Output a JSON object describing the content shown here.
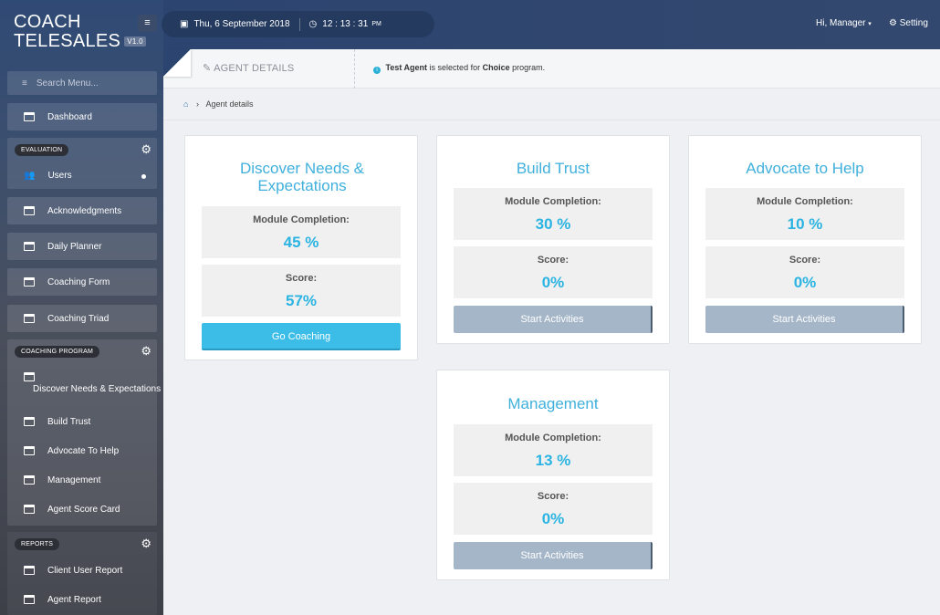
{
  "brand": {
    "line1": "COACH",
    "line2": "TELESALES",
    "version": "V1.0"
  },
  "topbar": {
    "date": "Thu, 6 September 2018",
    "time": "12 : 13 : 31",
    "ampm": "PM",
    "greeting": "Hi, Manager",
    "setting": "Setting"
  },
  "sidebar": {
    "search_placeholder": "Search Menu...",
    "dashboard": "Dashboard",
    "evaluation": {
      "heading": "EVALUATION",
      "users": "Users"
    },
    "acknowledgments": "Acknowledgments",
    "daily_planner": "Daily Planner",
    "coaching_form": "Coaching Form",
    "coaching_triad": "Coaching Triad",
    "coaching_program": {
      "heading": "COACHING PROGRAM",
      "items": [
        "Discover Needs & Expectations",
        "Build Trust",
        "Advocate To Help",
        "Management",
        "Agent Score Card"
      ]
    },
    "reports": {
      "heading": "REPORTS",
      "items": [
        "Client User Report",
        "Agent Report"
      ]
    }
  },
  "detailbar": {
    "title": "AGENT DETAILS",
    "agent": "Test Agent",
    "msg_mid": "is selected for",
    "program": "Choice",
    "msg_end": "program."
  },
  "breadcrumb": {
    "current": "Agent details"
  },
  "cards": [
    {
      "title": "Discover Needs & Expectations",
      "completion_label": "Module Completion:",
      "completion": "45 %",
      "score_label": "Score:",
      "score": "57%",
      "button": "Go Coaching"
    },
    {
      "title": "Build Trust",
      "completion_label": "Module Completion:",
      "completion": "30 %",
      "score_label": "Score:",
      "score": "0%",
      "button": "Start Activities"
    },
    {
      "title": "Advocate to Help",
      "completion_label": "Module Completion:",
      "completion": "10 %",
      "score_label": "Score:",
      "score": "0%",
      "button": "Start Activities"
    },
    {
      "title": "Management",
      "completion_label": "Module Completion:",
      "completion": "13 %",
      "score_label": "Score:",
      "score": "0%",
      "button": "Start Activities"
    }
  ],
  "colors": {
    "accent": "#3bbde8",
    "title": "#3fb0dc",
    "muted_button": "#a5b6c9"
  }
}
